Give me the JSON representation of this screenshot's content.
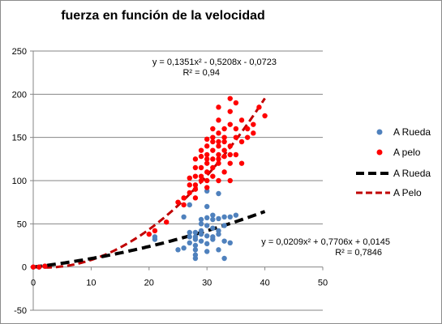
{
  "chart_data": {
    "type": "scatter",
    "title": "fuerza en función de  la  velocidad",
    "xlim": [
      0,
      50
    ],
    "ylim": [
      -50,
      250
    ],
    "x_ticks": [
      0,
      10,
      20,
      30,
      40,
      50
    ],
    "y_ticks": [
      -50,
      0,
      50,
      100,
      150,
      200,
      250
    ],
    "grid": "horizontal",
    "legend_placement": "right",
    "colors": {
      "rueda": "#4f81bd",
      "pelo": "#ff0000",
      "rueda_trend": "#000000",
      "pelo_trend": "#c00000"
    },
    "legend": [
      "A Rueda",
      "A pelo",
      "A Rueda",
      "A Pelo"
    ],
    "trendlines": [
      {
        "series": "A pelo",
        "equation": "y = 0,1351x² - 0,5208x - 0,0723",
        "r2": "R² = 0,94",
        "a": 0.1351,
        "b": -0.5208,
        "c": -0.0723,
        "x_range": [
          0,
          40
        ]
      },
      {
        "series": "A Rueda",
        "equation": "y = 0,0209x² + 0,7706x + 0,0145",
        "r2": "R² = 0,7846",
        "a": 0.0209,
        "b": 0.7706,
        "c": 0.0145,
        "x_range": [
          0,
          40
        ]
      }
    ],
    "series": [
      {
        "name": "A Rueda",
        "points": [
          [
            0,
            0
          ],
          [
            1,
            0
          ],
          [
            2,
            1
          ],
          [
            21,
            32
          ],
          [
            21,
            35
          ],
          [
            25,
            20
          ],
          [
            26,
            22
          ],
          [
            26,
            58
          ],
          [
            27,
            72
          ],
          [
            27,
            40
          ],
          [
            27,
            35
          ],
          [
            27,
            28
          ],
          [
            28,
            20
          ],
          [
            28,
            10
          ],
          [
            28,
            14
          ],
          [
            28,
            35
          ],
          [
            28,
            40
          ],
          [
            28,
            32
          ],
          [
            28,
            25
          ],
          [
            29,
            30
          ],
          [
            29,
            55
          ],
          [
            29,
            50
          ],
          [
            29,
            38
          ],
          [
            29,
            42
          ],
          [
            30,
            18
          ],
          [
            30,
            27
          ],
          [
            30,
            36
          ],
          [
            30,
            48
          ],
          [
            30,
            57
          ],
          [
            30,
            70
          ],
          [
            30,
            88
          ],
          [
            31,
            32
          ],
          [
            31,
            35
          ],
          [
            31,
            45
          ],
          [
            31,
            55
          ],
          [
            31,
            60
          ],
          [
            32,
            20
          ],
          [
            32,
            38
          ],
          [
            32,
            42
          ],
          [
            32,
            56
          ],
          [
            32,
            85
          ],
          [
            33,
            10
          ],
          [
            33,
            30
          ],
          [
            33,
            48
          ],
          [
            33,
            58
          ],
          [
            34,
            28
          ],
          [
            34,
            58
          ],
          [
            35,
            60
          ]
        ]
      },
      {
        "name": "A pelo",
        "points": [
          [
            0,
            0
          ],
          [
            1,
            0
          ],
          [
            2,
            1
          ],
          [
            20,
            38
          ],
          [
            21,
            42
          ],
          [
            23,
            52
          ],
          [
            25,
            75
          ],
          [
            26,
            72
          ],
          [
            26,
            80
          ],
          [
            27,
            86
          ],
          [
            27,
            95
          ],
          [
            27,
            103
          ],
          [
            28,
            95
          ],
          [
            28,
            105
          ],
          [
            28,
            80
          ],
          [
            28,
            90
          ],
          [
            28,
            115
          ],
          [
            28,
            125
          ],
          [
            29,
            105
          ],
          [
            29,
            115
          ],
          [
            29,
            128
          ],
          [
            29,
            135
          ],
          [
            29,
            100
          ],
          [
            30,
            110
          ],
          [
            30,
            120
          ],
          [
            30,
            125
          ],
          [
            30,
            130
          ],
          [
            30,
            140
          ],
          [
            30,
            148
          ],
          [
            30,
            92
          ],
          [
            30,
            100
          ],
          [
            31,
            115
          ],
          [
            31,
            125
          ],
          [
            31,
            135
          ],
          [
            31,
            145
          ],
          [
            31,
            150
          ],
          [
            31,
            160
          ],
          [
            31,
            105
          ],
          [
            32,
            120
          ],
          [
            32,
            125
          ],
          [
            32,
            130
          ],
          [
            32,
            140
          ],
          [
            32,
            145
          ],
          [
            32,
            155
          ],
          [
            32,
            170
          ],
          [
            32,
            185
          ],
          [
            32,
            100
          ],
          [
            33,
            128
          ],
          [
            33,
            135
          ],
          [
            33,
            145
          ],
          [
            33,
            150
          ],
          [
            33,
            160
          ],
          [
            33,
            110
          ],
          [
            34,
            120
          ],
          [
            34,
            130
          ],
          [
            34,
            140
          ],
          [
            34,
            195
          ],
          [
            34,
            180
          ],
          [
            34,
            165
          ],
          [
            34,
            100
          ],
          [
            35,
            130
          ],
          [
            35,
            150
          ],
          [
            35,
            160
          ],
          [
            35,
            190
          ],
          [
            36,
            170
          ],
          [
            36,
            145
          ],
          [
            36,
            120
          ],
          [
            37,
            160
          ],
          [
            37,
            150
          ],
          [
            38,
            155
          ],
          [
            38,
            165
          ],
          [
            39,
            185
          ],
          [
            40,
            175
          ]
        ]
      }
    ]
  }
}
